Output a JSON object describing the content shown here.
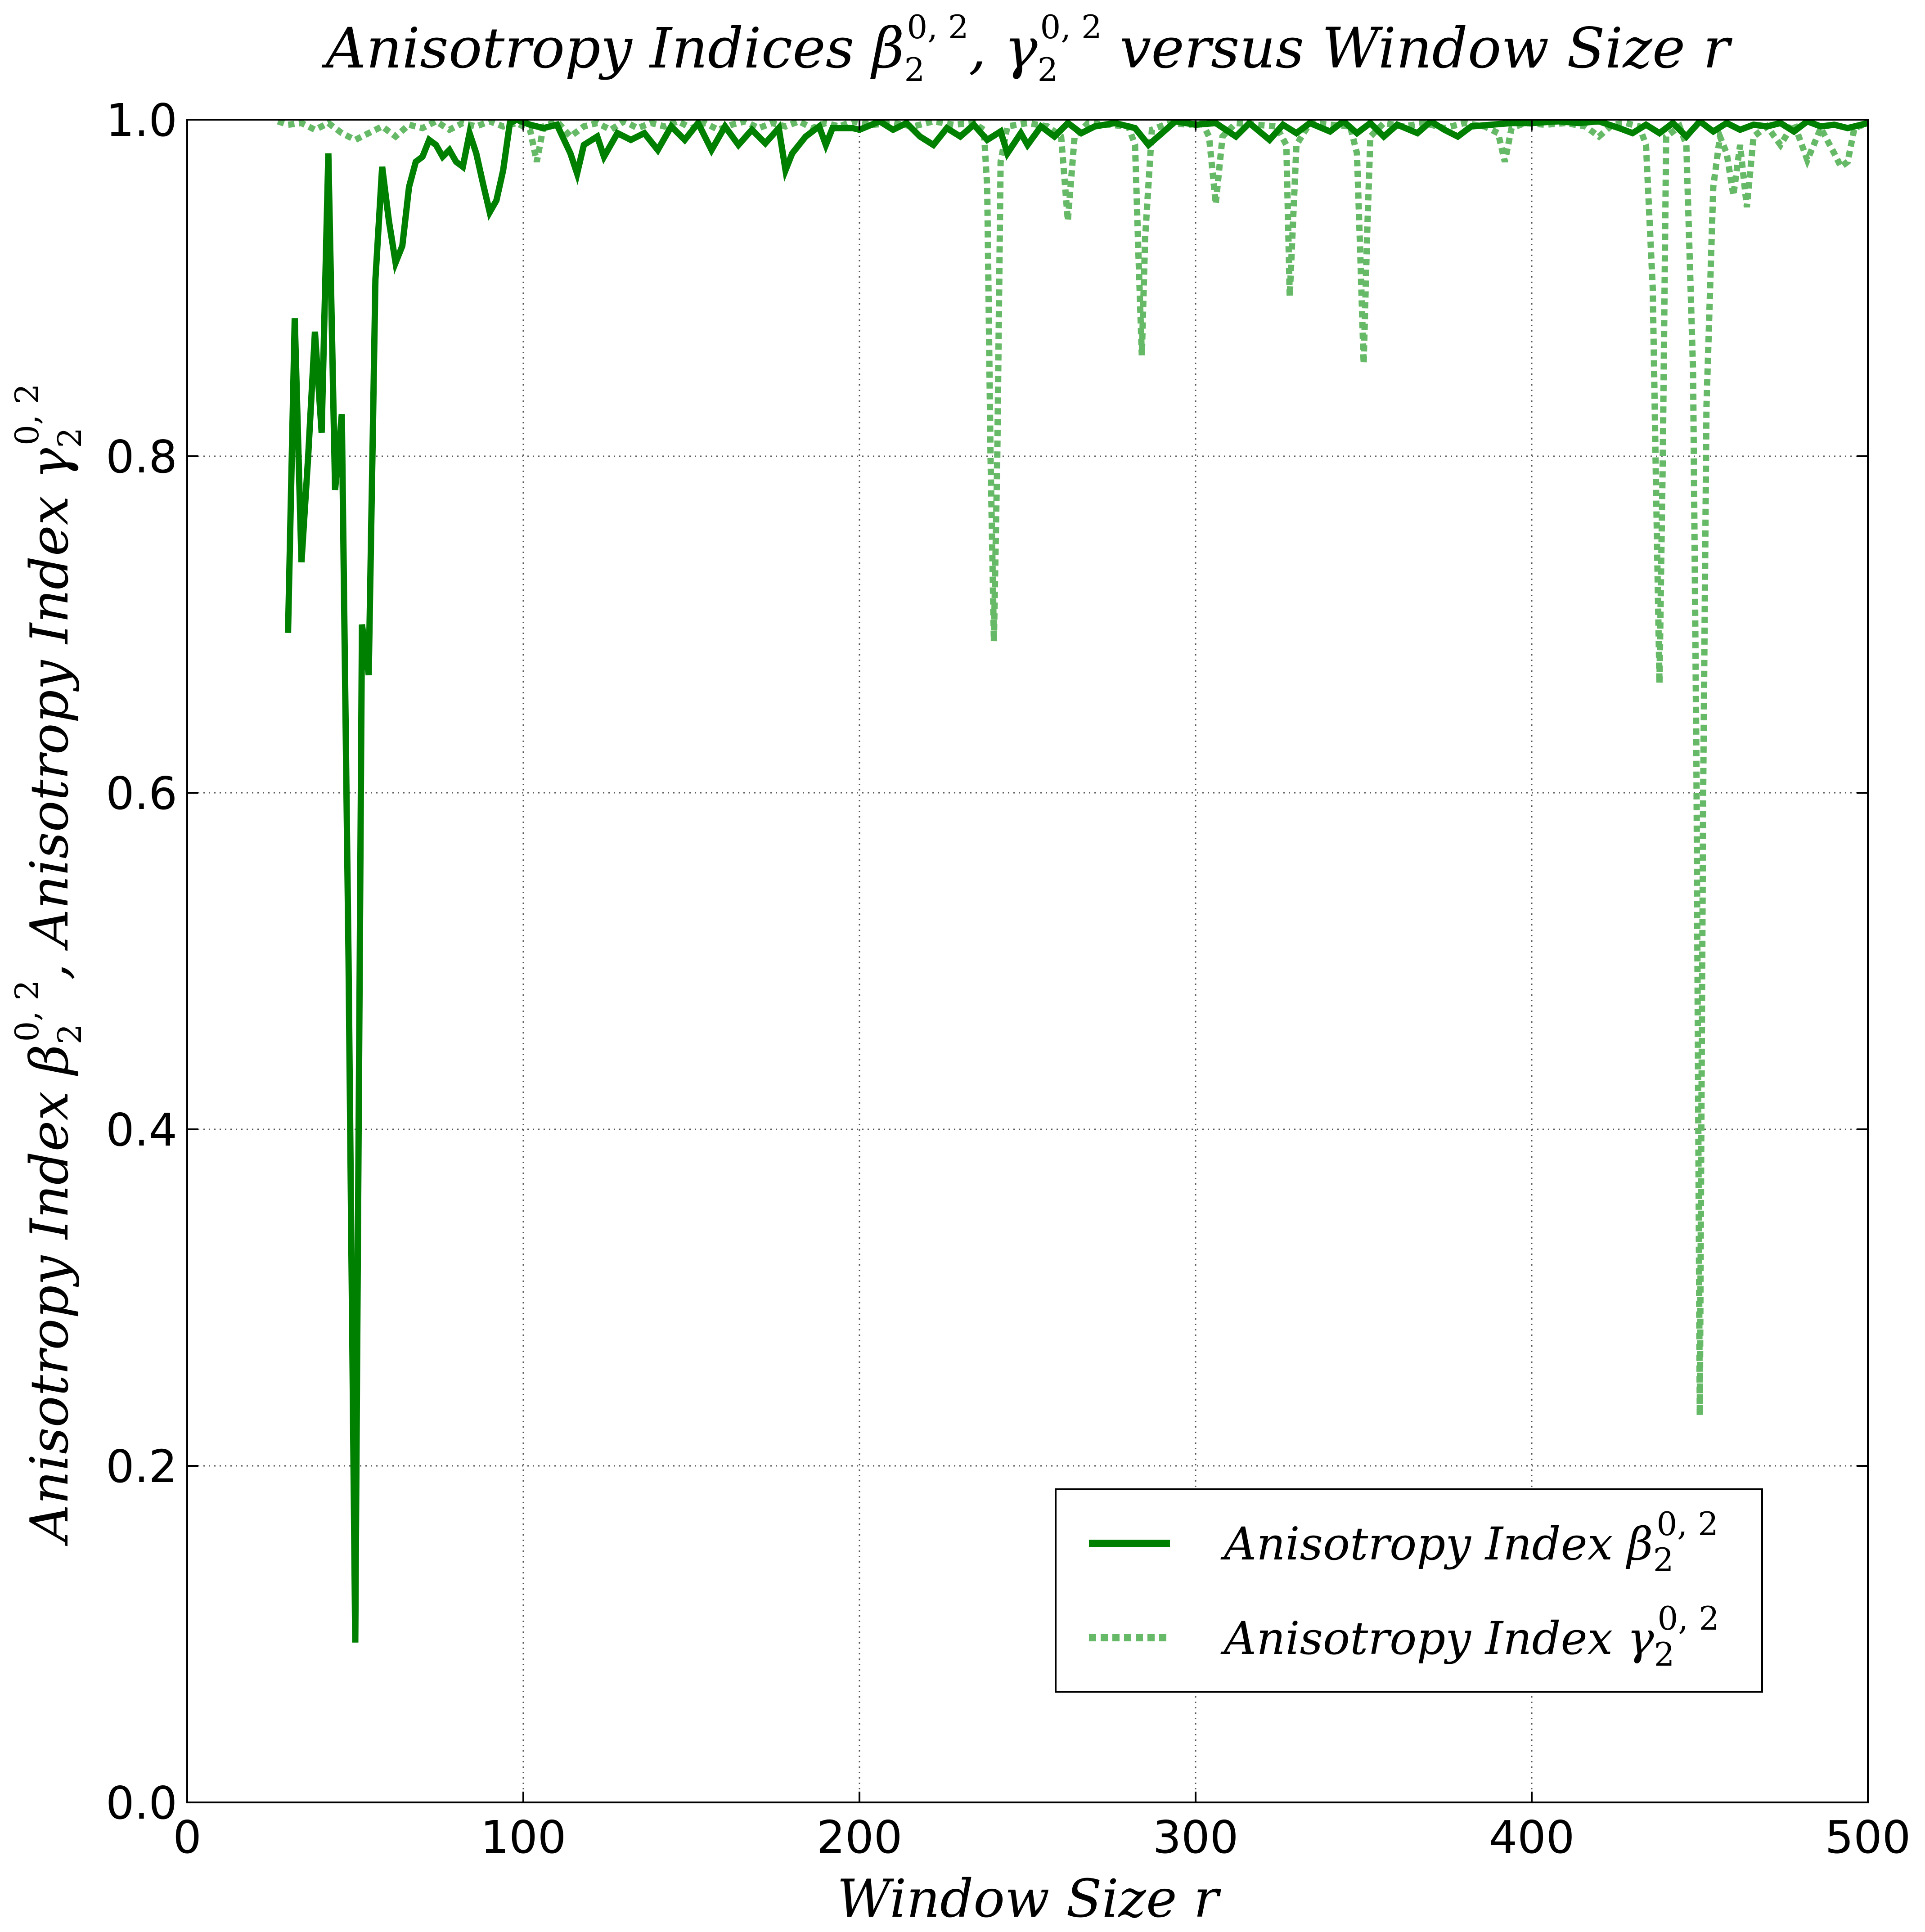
{
  "chart_data": {
    "type": "line",
    "title": {
      "pre": "Anisotropy Indices ",
      "sym1": "β",
      "sub1": "2",
      "sup1": "0, 2",
      "sep": ", ",
      "sym2": "γ",
      "sub2": "2",
      "sup2": "0, 2",
      "post": " versus Window Size r"
    },
    "xlabel": "Window Size r",
    "ylabel": {
      "pre": "Anisotropy Index ",
      "sym1": "β",
      "sub1": "2",
      "sup1": "0, 2",
      "mid": ",  Anisotropy Index ",
      "sym2": "γ",
      "sub2": "2",
      "sup2": "0, 2"
    },
    "xlim": [
      0,
      500
    ],
    "ylim": [
      0.0,
      1.0
    ],
    "xticks": [
      "0",
      "100",
      "200",
      "300",
      "400",
      "500"
    ],
    "yticks": [
      "0.0",
      "0.2",
      "0.4",
      "0.6",
      "0.8",
      "1.0"
    ],
    "grid": true,
    "legend_position": "lower-right",
    "series": [
      {
        "name_pre": "Anisotropy Index ",
        "name_sym": "β",
        "name_sub": "2",
        "name_sup": "0, 2",
        "color": "#008000",
        "style": "solid",
        "points": [
          [
            30,
            0.695
          ],
          [
            32,
            0.882
          ],
          [
            34,
            0.737
          ],
          [
            36,
            0.8
          ],
          [
            38,
            0.874
          ],
          [
            40,
            0.814
          ],
          [
            42,
            0.98
          ],
          [
            44,
            0.78
          ],
          [
            46,
            0.825
          ],
          [
            48,
            0.5
          ],
          [
            50,
            0.095
          ],
          [
            52,
            0.7
          ],
          [
            54,
            0.67
          ],
          [
            56,
            0.905
          ],
          [
            58,
            0.972
          ],
          [
            60,
            0.94
          ],
          [
            62,
            0.915
          ],
          [
            64,
            0.925
          ],
          [
            66,
            0.96
          ],
          [
            68,
            0.975
          ],
          [
            70,
            0.978
          ],
          [
            72,
            0.988
          ],
          [
            74,
            0.985
          ],
          [
            76,
            0.978
          ],
          [
            78,
            0.982
          ],
          [
            80,
            0.975
          ],
          [
            82,
            0.972
          ],
          [
            84,
            0.992
          ],
          [
            86,
            0.98
          ],
          [
            88,
            0.962
          ],
          [
            90,
            0.945
          ],
          [
            92,
            0.952
          ],
          [
            94,
            0.97
          ],
          [
            96,
            0.998
          ],
          [
            98,
            1.0
          ],
          [
            102,
            0.997
          ],
          [
            106,
            0.995
          ],
          [
            110,
            0.997
          ],
          [
            114,
            0.98
          ],
          [
            116,
            0.968
          ],
          [
            118,
            0.985
          ],
          [
            122,
            0.99
          ],
          [
            124,
            0.978
          ],
          [
            128,
            0.992
          ],
          [
            132,
            0.988
          ],
          [
            136,
            0.992
          ],
          [
            140,
            0.982
          ],
          [
            144,
            0.996
          ],
          [
            148,
            0.988
          ],
          [
            152,
            0.998
          ],
          [
            156,
            0.982
          ],
          [
            160,
            0.996
          ],
          [
            164,
            0.985
          ],
          [
            168,
            0.994
          ],
          [
            172,
            0.986
          ],
          [
            176,
            0.995
          ],
          [
            178,
            0.97
          ],
          [
            180,
            0.98
          ],
          [
            184,
            0.99
          ],
          [
            188,
            0.996
          ],
          [
            190,
            0.985
          ],
          [
            192,
            0.995
          ],
          [
            198,
            0.995
          ],
          [
            200,
            0.994
          ],
          [
            206,
            0.999
          ],
          [
            210,
            0.994
          ],
          [
            214,
            0.998
          ],
          [
            218,
            0.99
          ],
          [
            222,
            0.985
          ],
          [
            226,
            0.995
          ],
          [
            230,
            0.99
          ],
          [
            234,
            0.997
          ],
          [
            238,
            0.988
          ],
          [
            242,
            0.993
          ],
          [
            244,
            0.98
          ],
          [
            248,
            0.992
          ],
          [
            250,
            0.985
          ],
          [
            254,
            0.996
          ],
          [
            258,
            0.99
          ],
          [
            262,
            0.998
          ],
          [
            266,
            0.992
          ],
          [
            270,
            0.996
          ],
          [
            276,
            0.998
          ],
          [
            282,
            0.995
          ],
          [
            286,
            0.985
          ],
          [
            290,
            0.992
          ],
          [
            294,
            0.999
          ],
          [
            300,
            0.997
          ],
          [
            306,
            0.998
          ],
          [
            312,
            0.99
          ],
          [
            316,
            0.998
          ],
          [
            322,
            0.988
          ],
          [
            326,
            0.997
          ],
          [
            330,
            0.992
          ],
          [
            334,
            0.998
          ],
          [
            340,
            0.993
          ],
          [
            344,
            0.999
          ],
          [
            348,
            0.992
          ],
          [
            352,
            0.998
          ],
          [
            356,
            0.99
          ],
          [
            360,
            0.997
          ],
          [
            366,
            0.992
          ],
          [
            370,
            0.999
          ],
          [
            374,
            0.994
          ],
          [
            378,
            0.99
          ],
          [
            382,
            0.996
          ],
          [
            388,
            0.997
          ],
          [
            394,
            0.998
          ],
          [
            400,
            0.998
          ],
          [
            408,
            0.999
          ],
          [
            414,
            0.998
          ],
          [
            420,
            0.999
          ],
          [
            426,
            0.995
          ],
          [
            430,
            0.992
          ],
          [
            434,
            0.997
          ],
          [
            438,
            0.992
          ],
          [
            442,
            0.998
          ],
          [
            446,
            0.99
          ],
          [
            450,
            0.999
          ],
          [
            454,
            0.993
          ],
          [
            458,
            0.998
          ],
          [
            462,
            0.994
          ],
          [
            466,
            0.997
          ],
          [
            470,
            0.996
          ],
          [
            474,
            0.998
          ],
          [
            478,
            0.993
          ],
          [
            482,
            0.999
          ],
          [
            486,
            0.996
          ],
          [
            490,
            0.997
          ],
          [
            494,
            0.995
          ],
          [
            500,
            0.998
          ]
        ]
      },
      {
        "name_pre": "Anisotropy Index ",
        "name_sym": "γ",
        "name_sub": "2",
        "name_sup": "0, 2",
        "color": "#66b966",
        "style": "dotted",
        "points": [
          [
            27,
            0.999
          ],
          [
            30,
            0.997
          ],
          [
            34,
            0.998
          ],
          [
            38,
            0.994
          ],
          [
            42,
            0.998
          ],
          [
            46,
            0.992
          ],
          [
            50,
            0.988
          ],
          [
            54,
            0.992
          ],
          [
            58,
            0.996
          ],
          [
            62,
            0.99
          ],
          [
            66,
            0.997
          ],
          [
            70,
            0.995
          ],
          [
            74,
            0.999
          ],
          [
            78,
            0.994
          ],
          [
            82,
            0.998
          ],
          [
            86,
            0.996
          ],
          [
            90,
            0.999
          ],
          [
            94,
            0.996
          ],
          [
            98,
            0.998
          ],
          [
            102,
            0.994
          ],
          [
            104,
            0.975
          ],
          [
            106,
            0.996
          ],
          [
            110,
            0.999
          ],
          [
            114,
            0.99
          ],
          [
            118,
            0.996
          ],
          [
            122,
            0.998
          ],
          [
            126,
            0.994
          ],
          [
            130,
            0.999
          ],
          [
            134,
            0.995
          ],
          [
            138,
            0.998
          ],
          [
            142,
            0.996
          ],
          [
            146,
            0.999
          ],
          [
            150,
            0.995
          ],
          [
            154,
            0.998
          ],
          [
            158,
            0.994
          ],
          [
            162,
            0.997
          ],
          [
            166,
            0.999
          ],
          [
            170,
            0.995
          ],
          [
            174,
            0.998
          ],
          [
            178,
            0.996
          ],
          [
            182,
            0.999
          ],
          [
            186,
            0.995
          ],
          [
            190,
            0.998
          ],
          [
            194,
            0.996
          ],
          [
            198,
            0.999
          ],
          [
            204,
            0.997
          ],
          [
            210,
            0.998
          ],
          [
            216,
            0.996
          ],
          [
            222,
            0.999
          ],
          [
            228,
            0.997
          ],
          [
            234,
            0.998
          ],
          [
            237,
            0.994
          ],
          [
            238,
            0.96
          ],
          [
            239,
            0.8
          ],
          [
            240,
            0.69
          ],
          [
            241,
            0.8
          ],
          [
            242,
            0.975
          ],
          [
            244,
            0.996
          ],
          [
            250,
            0.998
          ],
          [
            256,
            0.996
          ],
          [
            260,
            0.99
          ],
          [
            262,
            0.94
          ],
          [
            264,
            0.99
          ],
          [
            268,
            0.998
          ],
          [
            274,
            0.997
          ],
          [
            280,
            0.996
          ],
          [
            282,
            0.985
          ],
          [
            283,
            0.92
          ],
          [
            284,
            0.86
          ],
          [
            285,
            0.93
          ],
          [
            287,
            0.994
          ],
          [
            292,
            0.998
          ],
          [
            298,
            0.997
          ],
          [
            302,
            0.998
          ],
          [
            304,
            0.99
          ],
          [
            306,
            0.95
          ],
          [
            308,
            0.99
          ],
          [
            312,
            0.998
          ],
          [
            318,
            0.997
          ],
          [
            324,
            0.996
          ],
          [
            327,
            0.985
          ],
          [
            328,
            0.895
          ],
          [
            330,
            0.985
          ],
          [
            334,
            0.998
          ],
          [
            340,
            0.997
          ],
          [
            346,
            0.996
          ],
          [
            348,
            0.98
          ],
          [
            349,
            0.92
          ],
          [
            350,
            0.855
          ],
          [
            351,
            0.93
          ],
          [
            352,
            0.99
          ],
          [
            356,
            0.998
          ],
          [
            362,
            0.996
          ],
          [
            368,
            0.998
          ],
          [
            374,
            0.995
          ],
          [
            380,
            0.998
          ],
          [
            386,
            0.996
          ],
          [
            390,
            0.992
          ],
          [
            392,
            0.975
          ],
          [
            394,
            0.995
          ],
          [
            398,
            0.998
          ],
          [
            404,
            0.997
          ],
          [
            410,
            0.998
          ],
          [
            416,
            0.996
          ],
          [
            420,
            0.99
          ],
          [
            424,
            0.997
          ],
          [
            428,
            0.998
          ],
          [
            432,
            0.996
          ],
          [
            434,
            0.985
          ],
          [
            436,
            0.9
          ],
          [
            437,
            0.78
          ],
          [
            438,
            0.665
          ],
          [
            439,
            0.8
          ],
          [
            440,
            0.99
          ],
          [
            444,
            0.996
          ],
          [
            446,
            0.985
          ],
          [
            448,
            0.85
          ],
          [
            449,
            0.62
          ],
          [
            450,
            0.23
          ],
          [
            451,
            0.6
          ],
          [
            452,
            0.83
          ],
          [
            454,
            0.96
          ],
          [
            456,
            0.99
          ],
          [
            458,
            0.98
          ],
          [
            460,
            0.955
          ],
          [
            462,
            0.985
          ],
          [
            464,
            0.948
          ],
          [
            466,
            0.99
          ],
          [
            470,
            0.996
          ],
          [
            474,
            0.985
          ],
          [
            478,
            0.998
          ],
          [
            482,
            0.976
          ],
          [
            486,
            0.995
          ],
          [
            490,
            0.98
          ],
          [
            492,
            0.972
          ],
          [
            494,
            0.975
          ],
          [
            496,
            0.995
          ],
          [
            500,
            0.998
          ]
        ]
      }
    ]
  }
}
